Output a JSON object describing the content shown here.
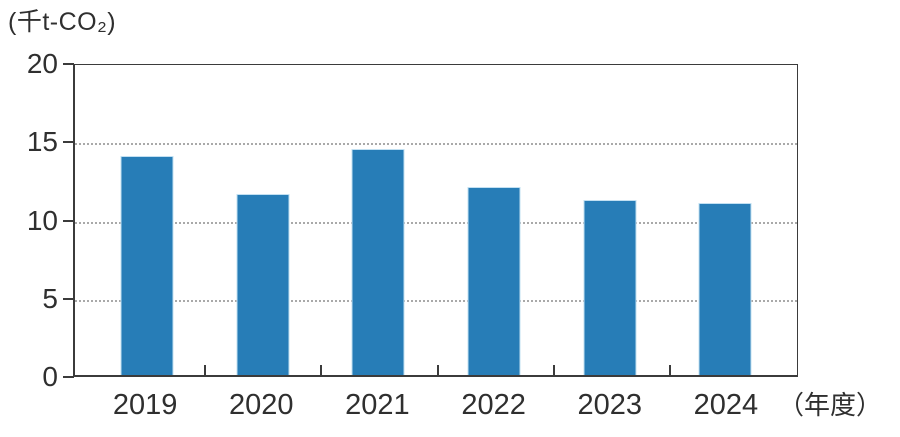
{
  "chart_data": {
    "type": "bar",
    "title": "",
    "unit_label": "(千t-CO₂)",
    "xlabel": "（年度）",
    "categories": [
      "2019",
      "2020",
      "2021",
      "2022",
      "2023",
      "2024"
    ],
    "values": [
      14.1,
      11.7,
      14.6,
      12.1,
      11.3,
      11.1
    ],
    "y_ticks": [
      0,
      5,
      10,
      15,
      20
    ],
    "ylim": [
      0,
      20
    ],
    "grid": "horizontal-dotted-at-5-10-15",
    "legend": "none",
    "bar_color": "#277db7",
    "bar_edge_color": "#c2e0f2",
    "axis_color": "#3b3b3b",
    "gridline_color": "#a9a9a9",
    "text_color": "#2f2f2f"
  }
}
